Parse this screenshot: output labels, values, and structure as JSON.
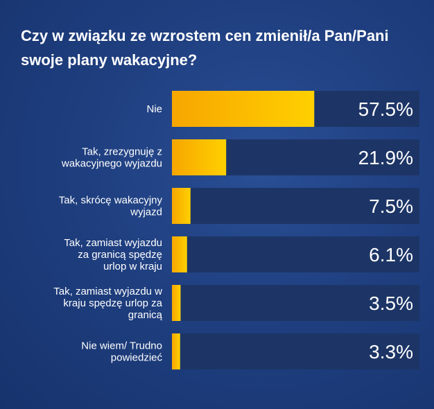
{
  "title": "Czy w związku ze wzrostem cen zmienił/a Pan/Pani swoje plany wakacyjne?",
  "chart_data": {
    "type": "bar",
    "orientation": "horizontal",
    "title": "Czy w związku ze wzrostem cen zmienił/a Pan/Pani swoje plany wakacyjne?",
    "categories": [
      "Nie",
      "Tak, zrezygnuję z wakacyjnego wyjazdu",
      "Tak, skrócę wakacyjny wyjazd",
      "Tak, zamiast wyjazdu za granicą spędzę urlop w kraju",
      "Tak, zamiast wyjazdu w kraju spędzę urlop za granicą",
      "Nie wiem/ Trudno powiedzieć"
    ],
    "values": [
      57.5,
      21.9,
      7.5,
      6.1,
      3.5,
      3.3
    ],
    "value_labels": [
      "57.5%",
      "21.9%",
      "7.5%",
      "6.1%",
      "3.5%",
      "3.3%"
    ],
    "xlim": [
      0,
      100
    ],
    "unit": "%",
    "grid": false,
    "legend": "none",
    "colors": {
      "bar_start": "#f7a600",
      "bar_end": "#ffd000",
      "track": "#1d3566",
      "text": "#ffffff",
      "background": "#1f3f80"
    }
  }
}
